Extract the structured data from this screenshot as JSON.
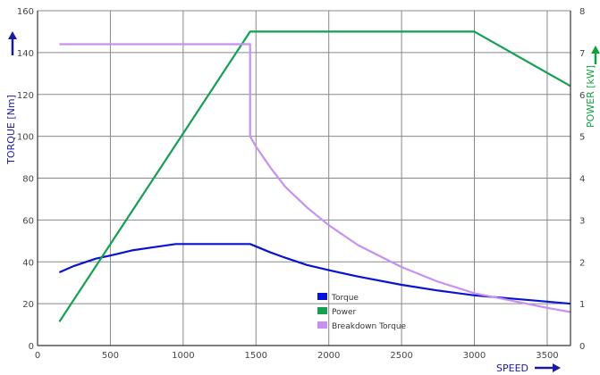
{
  "chart_data": {
    "type": "line",
    "x_ticks": [
      0,
      500,
      1000,
      1500,
      2000,
      2500,
      3000,
      3500
    ],
    "xlim": [
      0,
      3660
    ],
    "ylim_left": [
      0,
      160
    ],
    "ylim_right": [
      0,
      8
    ],
    "y_ticks_left": [
      0,
      20,
      40,
      60,
      80,
      100,
      120,
      140,
      160
    ],
    "y_ticks_right": [
      0,
      1,
      2,
      3,
      4,
      5,
      6,
      7,
      8
    ],
    "xlabel": "SPEED",
    "ylabel_left": "TORQUE [Nm]",
    "ylabel_right": "POWER [kW]",
    "grid": true,
    "legend_position": "bottom-center",
    "series": [
      {
        "name": "Torque",
        "axis": "left",
        "color": "#0a14d0",
        "points": [
          [
            150,
            35
          ],
          [
            250,
            38
          ],
          [
            400,
            41.5
          ],
          [
            500,
            43
          ],
          [
            650,
            45.5
          ],
          [
            800,
            47
          ],
          [
            950,
            48.5
          ],
          [
            1100,
            48.5
          ],
          [
            1300,
            48.5
          ],
          [
            1460,
            48.5
          ],
          [
            1600,
            44.5
          ],
          [
            1700,
            42
          ],
          [
            1850,
            38.5
          ],
          [
            2000,
            36
          ],
          [
            2200,
            33
          ],
          [
            2500,
            29
          ],
          [
            2750,
            26.3
          ],
          [
            3000,
            24
          ],
          [
            3250,
            22.5
          ],
          [
            3500,
            21
          ],
          [
            3660,
            20
          ]
        ]
      },
      {
        "name": "Power",
        "axis": "right",
        "color": "#14a050",
        "points": [
          [
            150,
            0.57
          ],
          [
            1460,
            7.5
          ],
          [
            3000,
            7.5
          ],
          [
            3660,
            6.2
          ]
        ]
      },
      {
        "name": "Breakdown Torque",
        "axis": "left",
        "color": "#c890f0",
        "points": [
          [
            150,
            144
          ],
          [
            1460,
            144
          ],
          [
            1460,
            100
          ],
          [
            1500,
            95
          ],
          [
            1600,
            85
          ],
          [
            1700,
            76
          ],
          [
            1850,
            66
          ],
          [
            2000,
            57.5
          ],
          [
            2200,
            48
          ],
          [
            2500,
            37.5
          ],
          [
            2750,
            30.5
          ],
          [
            3000,
            25
          ],
          [
            3250,
            21.5
          ],
          [
            3500,
            18
          ],
          [
            3660,
            16
          ]
        ]
      }
    ]
  }
}
